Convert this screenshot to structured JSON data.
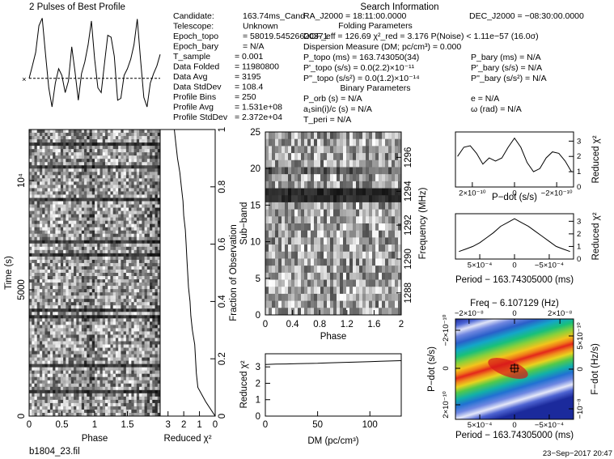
{
  "header": {
    "left_title": "2 Pulses of Best Profile",
    "right_title": "Search Information",
    "folding_title": "Folding Parameters",
    "binary_title": "Binary Parameters"
  },
  "info_col1": [
    {
      "label": "Candidate:",
      "value": "163.74ms_Cand"
    },
    {
      "label": "Telescope:",
      "value": "Unknown"
    },
    {
      "label": "Epoch_topo",
      "value": "= 58019.54526620371"
    },
    {
      "label": "Epoch_bary",
      "value": "= N/A"
    },
    {
      "label": "T_sample",
      "value": "0.001"
    },
    {
      "label": "Data Folded",
      "value": "11980800"
    },
    {
      "label": "Data Avg",
      "value": "3195"
    },
    {
      "label": "Data StdDev",
      "value": "108.4"
    },
    {
      "label": "Profile Bins",
      "value": "250"
    },
    {
      "label": "Profile Avg",
      "value": "1.531e+08"
    },
    {
      "label": "Profile StdDev",
      "value": "2.372e+04"
    }
  ],
  "search_info": {
    "ra": "RA_J2000 = 18:11:00.0000",
    "dec": "DEC_J2000 = −08:30:00.0000",
    "dof_line": "DOF_eff = 126.69  χ²_red = 3.176  P(Noise) < 1.11e−57  (16.0σ)",
    "dm_line": "Dispersion Measure (DM; pc/cm³) = 0.000",
    "p_topo": "P_topo (ms)  = 163.743050(34)",
    "p_bary": "P_bary (ms) = N/A",
    "pd_topo": "P'_topo (s/s) = 0.0(2.2)×10⁻¹¹",
    "pd_bary": "P'_bary (s/s) = N/A",
    "pdd_topo": "P''_topo (s/s²) = 0.0(1.2)×10⁻¹⁴",
    "pdd_bary": "P''_bary (s/s²) = N/A",
    "p_orb": "P_orb (s) = N/A",
    "e": "e = N/A",
    "a1": "a₁sin(i)/c (s) = N/A",
    "omega": "ω (rad) = N/A",
    "t_peri": "T_peri = N/A"
  },
  "footer": {
    "filename": "b1804_23.fil",
    "timestamp": "23−Sep−2017 20:47"
  },
  "chart_data": [
    {
      "id": "profile",
      "type": "line",
      "title": "2 Pulses of Best Profile",
      "phase": [
        0,
        0.05,
        0.1,
        0.15,
        0.2,
        0.25,
        0.3,
        0.35,
        0.4,
        0.45,
        0.5,
        0.55,
        0.6,
        0.65,
        0.7,
        0.75,
        0.8,
        0.85,
        0.9,
        0.95,
        1,
        1.05,
        1.1,
        1.15,
        1.2,
        1.25,
        1.3,
        1.35,
        1.4,
        1.45,
        1.5,
        1.55,
        1.6,
        1.65,
        1.7,
        1.75,
        1.8,
        1.85,
        1.9,
        1.95,
        2
      ],
      "values": [
        0.35,
        0.48,
        0.62,
        0.9,
        0.98,
        0.6,
        0.25,
        0.05,
        0.3,
        0.45,
        0.38,
        0.2,
        0.32,
        0.68,
        0.42,
        0.12,
        0.4,
        0.52,
        0.7,
        0.95,
        0.55,
        0.25,
        0.2,
        0.5,
        0.8,
        0.78,
        0.58,
        0.12,
        0.14,
        0.38,
        0.45,
        0.55,
        0.7,
        0.97,
        0.55,
        0.15,
        0.05,
        0.3,
        0.4,
        0.48,
        0.6
      ],
      "mean_level": 0.35
    },
    {
      "id": "time_phase",
      "type": "heatmap",
      "xlabel": "Phase",
      "ylabel": "Time (s)",
      "x_ticks": [
        "0",
        "0.5",
        "1",
        "1.5"
      ],
      "y_ticks": [
        "0",
        "5000",
        "10⁴"
      ]
    },
    {
      "id": "redchi_time",
      "type": "line",
      "xlabel": "Reduced χ²",
      "ylabel": "Fraction of Observation",
      "x_ticks": [
        "3",
        "2",
        "1",
        "0"
      ],
      "y_ticks": [
        "0",
        "0.2",
        "0.4",
        "0.6",
        "0.8",
        "1"
      ],
      "fraction": [
        0,
        0.05,
        0.1,
        0.15,
        0.2,
        0.25,
        0.3,
        0.35,
        0.4,
        0.45,
        0.5,
        0.55,
        0.6,
        0.65,
        0.7,
        0.75,
        0.8,
        0.85,
        0.9,
        0.95,
        1
      ],
      "redchi": [
        0,
        0.6,
        1.1,
        1.2,
        1.25,
        1.3,
        1.45,
        1.55,
        1.6,
        1.7,
        1.75,
        1.8,
        1.85,
        1.9,
        2.0,
        2.05,
        2.15,
        2.25,
        2.4,
        2.5,
        2.6
      ]
    },
    {
      "id": "subband_phase",
      "type": "heatmap",
      "xlabel": "Phase",
      "ylabel": "Sub−band",
      "right_label": "Frequency (MHz)",
      "x_ticks": [
        "0",
        "0.4",
        "0.8",
        "1.2",
        "1.6",
        "2"
      ],
      "y_ticks": [
        "0",
        "5",
        "10",
        "15",
        "20",
        "25"
      ],
      "freq_ticks": [
        "1288",
        "1290",
        "1292",
        "1294",
        "1296"
      ]
    },
    {
      "id": "dm_chi",
      "type": "line",
      "xlabel": "DM (pc/cm³)",
      "ylabel": "Reduced χ²",
      "x_ticks": [
        "0",
        "50",
        "100"
      ],
      "y_ticks": [
        "0",
        "1",
        "2",
        "3"
      ],
      "dm": [
        0,
        10,
        20,
        30,
        40,
        50,
        60,
        70,
        80,
        90,
        100,
        110,
        120,
        130
      ],
      "redchi": [
        3.15,
        3.17,
        3.18,
        3.2,
        3.21,
        3.22,
        3.24,
        3.26,
        3.28,
        3.3,
        3.32,
        3.34,
        3.36,
        3.38
      ]
    },
    {
      "id": "pdot_chi",
      "type": "line",
      "xlabel": "P−dot (s/s)",
      "ylabel": "Reduced χ²",
      "x_ticks": [
        "2×10⁻¹⁰",
        "0",
        "−2×10⁻¹⁰"
      ],
      "y_ticks": [
        "0",
        "1",
        "2",
        "3"
      ],
      "pdot_e10": [
        2.7,
        2.4,
        2.1,
        1.8,
        1.5,
        1.2,
        0.9,
        0.6,
        0.3,
        0,
        -0.3,
        -0.6,
        -0.9,
        -1.2,
        -1.5,
        -1.8,
        -2.1,
        -2.4,
        -2.7
      ],
      "redchi": [
        2.0,
        2.6,
        2.7,
        2.2,
        1.5,
        1.9,
        1.7,
        1.9,
        2.6,
        3.2,
        2.6,
        1.6,
        1.0,
        1.2,
        1.9,
        2.3,
        2.2,
        1.7,
        1.0
      ]
    },
    {
      "id": "period_chi",
      "type": "line",
      "xlabel": "Period − 163.74305000 (ms)",
      "ylabel": "Reduced χ²",
      "x_ticks": [
        "5×10⁻⁴",
        "0",
        "−5×10⁻⁴"
      ],
      "y_ticks": [
        "0",
        "1",
        "2",
        "3"
      ],
      "dp_e4": [
        8,
        7,
        6,
        5,
        4,
        3,
        2,
        1,
        0,
        -1,
        -2,
        -3,
        -4,
        -5,
        -6,
        -7,
        -8
      ],
      "redchi": [
        0.6,
        0.8,
        1.0,
        1.3,
        1.7,
        2.1,
        2.6,
        2.9,
        3.2,
        2.9,
        2.6,
        2.2,
        1.8,
        1.4,
        1.0,
        0.8,
        0.6
      ]
    },
    {
      "id": "pp_dot_plane",
      "type": "heatmap",
      "title": "Freq − 6.107129 (Hz)",
      "xlabel": "Period − 163.74305000 (ms)",
      "ylabel": "P−dot (s/s)",
      "right_label": "F−dot (Hz/s)",
      "x_ticks": [
        "5×10⁻⁴",
        "0",
        "−5×10⁻⁴"
      ],
      "top_ticks": [
        "−2×10⁻⁸",
        "0",
        "2×10⁻⁸"
      ],
      "y_ticks": [
        "2×10⁻¹⁰",
        "0",
        "−2×10⁻¹⁰"
      ],
      "right_ticks": [
        "−10⁻⁸",
        "0",
        "5×10⁻¹⁰"
      ]
    }
  ]
}
